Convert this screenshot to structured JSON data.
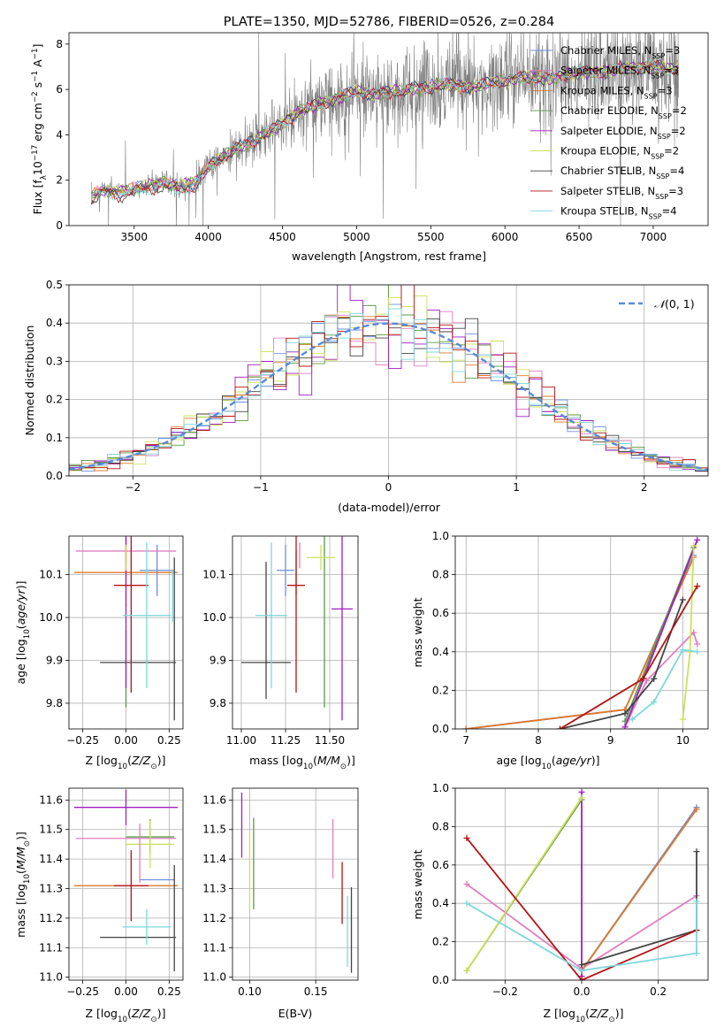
{
  "colors": {
    "Chabrier MILES": "#6a8fe0",
    "Salpeter MILES": "#e07ec1",
    "Kroupa MILES": "#e0782a",
    "Chabrier ELODIE": "#5a9a40",
    "Salpeter ELODIE": "#a01ec0",
    "Kroupa ELODIE": "#cde05a",
    "Chabrier STELIB": "#444444",
    "Salpeter STELIB": "#b41414",
    "Kroupa STELIB": "#7dd8dc",
    "gauss": "#5a8ad8"
  },
  "chart_data": [
    {
      "type": "line",
      "title": "PLATE=1350, MJD=52786, FIBERID=0526, z=0.284",
      "xlabel": "wavelength [Angstrom, rest frame]",
      "ylabel": "Flux [f_λ 10^-17 erg cm^-2 s^-1 A^-1]",
      "xlim": [
        3060,
        7370
      ],
      "ylim": [
        0,
        8.5
      ],
      "xticks": [
        3500,
        4000,
        4500,
        5000,
        5500,
        6000,
        6500,
        7000
      ],
      "yticks": [
        0,
        2,
        4,
        6,
        8
      ],
      "legend": [
        "Chabrier MILES, N_SSP=3",
        "Salpeter MILES, N_SSP=3",
        "Kroupa MILES, N_SSP=3",
        "Chabrier ELODIE, N_SSP=2",
        "Salpeter ELODIE, N_SSP=2",
        "Kroupa ELODIE, N_SSP=2",
        "Chabrier STELIB, N_SSP=4",
        "Salpeter STELIB, N_SSP=3",
        "Kroupa STELIB, N_SSP=4"
      ],
      "legend_position": "right",
      "model_wavelength": [
        3210,
        3300,
        3400,
        3500,
        3600,
        3700,
        3800,
        3900,
        4000,
        4100,
        4200,
        4300,
        4400,
        4500,
        4600,
        4700,
        4800,
        4900,
        5000,
        5100,
        5200,
        5300,
        5400,
        5500,
        5600,
        5700,
        5800,
        5900,
        6000,
        6100,
        6200,
        6300,
        6400,
        6500,
        6600,
        6700,
        6800,
        6900,
        7000,
        7100,
        7200
      ],
      "model_flux": [
        1.3,
        1.6,
        1.5,
        1.6,
        1.8,
        1.9,
        1.7,
        1.9,
        2.6,
        3.0,
        3.5,
        3.7,
        4.1,
        4.5,
        5.0,
        5.2,
        5.5,
        5.7,
        5.9,
        5.8,
        5.9,
        5.9,
        6.1,
        6.1,
        6.2,
        6.2,
        6.1,
        6.3,
        6.4,
        6.5,
        6.5,
        6.5,
        6.6,
        6.7,
        6.8,
        6.8,
        6.9,
        7.0,
        7.0,
        6.9,
        7.0
      ],
      "data_range": [
        3210,
        7170
      ]
    },
    {
      "type": "line",
      "xlabel": "(data-model)/error",
      "ylabel": "Normed distribution",
      "xlim": [
        -2.5,
        2.5
      ],
      "ylim": [
        0,
        0.5
      ],
      "xticks": [
        -2,
        -1,
        0,
        1,
        2
      ],
      "yticks": [
        0.0,
        0.1,
        0.2,
        0.3,
        0.4,
        0.5
      ],
      "grid": true,
      "legend": [
        "N(0,1)"
      ],
      "legend_position": "top-right",
      "bin_width": 0.1
    },
    {
      "type": "scatter",
      "xlabel": "Z [log10(Z/Z⊙)]",
      "ylabel": "age [log10(age/yr)]",
      "xlim": [
        -0.33,
        0.33
      ],
      "ylim": [
        9.74,
        10.19
      ],
      "xticks": [
        -0.25,
        0.0,
        0.25
      ],
      "yticks": [
        9.8,
        9.9,
        10.0,
        10.1
      ],
      "grid": true,
      "points": [
        {
          "model": "Chabrier MILES",
          "x": 0.18,
          "y": 10.11,
          "xerr": 0.1,
          "yerr": 0.06
        },
        {
          "model": "Salpeter MILES",
          "x": 0.0,
          "y": 10.155,
          "xerr": 0.29,
          "yerr": 0.03
        },
        {
          "model": "Kroupa MILES",
          "x": 0.0,
          "y": 10.105,
          "xerr": 0.3,
          "yerr": 0.08
        },
        {
          "model": "Chabrier ELODIE",
          "x": 0.0,
          "y": 9.88,
          "xerr": 0.0,
          "yerr": 0.09
        },
        {
          "model": "Salpeter ELODIE",
          "x": 0.0,
          "y": 10.075,
          "xerr": 0.0,
          "yerr": 0.24
        },
        {
          "model": "Kroupa ELODIE",
          "x": 0.0,
          "y": 10.14,
          "xerr": 0.0,
          "yerr": 0.03
        },
        {
          "model": "Chabrier STELIB",
          "x": 0.07,
          "y": 9.895,
          "xerr": 0.22,
          "yerr": 0.0
        },
        {
          "model": "Salpeter STELIB",
          "x": 0.03,
          "y": 10.075,
          "xerr": 0.1,
          "yerr": 0.25
        },
        {
          "model": "Kroupa STELIB",
          "x": 0.12,
          "y": 10.005,
          "xerr": 0.14,
          "yerr": 0.17
        },
        {
          "model": "Kroupa STELIB",
          "x": 0.27,
          "y": 10.05,
          "xerr": 0.0,
          "yerr": 0.06
        },
        {
          "model": "Chabrier STELIB",
          "x": 0.28,
          "y": 9.95,
          "xerr": 0.0,
          "yerr": 0.19
        }
      ]
    },
    {
      "type": "scatter",
      "xlabel": "mass [log10(M/M⊙)]",
      "xlim": [
        10.95,
        11.66
      ],
      "ylim": [
        9.74,
        10.19
      ],
      "xticks": [
        11.0,
        11.25,
        11.5
      ],
      "yticks": [
        9.8,
        9.9,
        10.0,
        10.1
      ],
      "grid": true,
      "points": [
        {
          "model": "Chabrier MILES",
          "x": 11.25,
          "y": 10.11,
          "xerr": 0.05,
          "yerr": 0.06
        },
        {
          "model": "Salpeter MILES",
          "x": 11.33,
          "y": 10.145,
          "xerr": 0.0,
          "yerr": 0.03
        },
        {
          "model": "Kroupa MILES",
          "x": 11.31,
          "y": 10.105,
          "xerr": 0.0,
          "yerr": 0.05
        },
        {
          "model": "Chabrier ELODIE",
          "x": 11.47,
          "y": 9.99,
          "xerr": 0.0,
          "yerr": 0.2
        },
        {
          "model": "Salpeter ELODIE",
          "x": 11.57,
          "y": 10.02,
          "xerr": 0.06,
          "yerr": 0.26
        },
        {
          "model": "Kroupa ELODIE",
          "x": 11.45,
          "y": 10.14,
          "xerr": 0.08,
          "yerr": 0.03
        },
        {
          "model": "Chabrier STELIB",
          "x": 11.14,
          "y": 9.895,
          "xerr": 0.14,
          "yerr": 0.0
        },
        {
          "model": "Chabrier STELIB",
          "x": 11.14,
          "y": 9.97,
          "xerr": 0.0,
          "yerr": 0.16
        },
        {
          "model": "Salpeter STELIB",
          "x": 11.31,
          "y": 10.075,
          "xerr": 0.05,
          "yerr": 0.25
        },
        {
          "model": "Kroupa STELIB",
          "x": 11.17,
          "y": 10.005,
          "xerr": 0.09,
          "yerr": 0.17
        }
      ]
    },
    {
      "type": "line",
      "xlabel": "age [log10(age/yr)]",
      "ylabel": "mass weight",
      "xlim": [
        6.85,
        10.35
      ],
      "ylim": [
        0.0,
        1.0
      ],
      "xticks": [
        7,
        8,
        9,
        10
      ],
      "yticks": [
        0.0,
        0.2,
        0.4,
        0.6,
        0.8,
        1.0
      ],
      "grid": true,
      "series": [
        {
          "model": "Chabrier MILES",
          "x": [
            7.0,
            9.2,
            10.15
          ],
          "y": [
            0.0,
            0.1,
            0.9
          ]
        },
        {
          "model": "Salpeter MILES",
          "x": [
            9.25,
            9.5,
            10.15,
            10.2
          ],
          "y": [
            0.05,
            0.25,
            0.5,
            0.44
          ]
        },
        {
          "model": "Kroupa MILES",
          "x": [
            7.0,
            9.2,
            10.15
          ],
          "y": [
            0.0,
            0.1,
            0.89
          ]
        },
        {
          "model": "Chabrier ELODIE",
          "x": [
            9.2,
            10.15
          ],
          "y": [
            0.04,
            0.94
          ]
        },
        {
          "model": "Salpeter ELODIE",
          "x": [
            9.2,
            10.2
          ],
          "y": [
            0.01,
            0.98
          ]
        },
        {
          "model": "Kroupa ELODIE",
          "x": [
            10.0,
            10.1,
            10.15
          ],
          "y": [
            0.05,
            0.4,
            0.95
          ]
        },
        {
          "model": "Chabrier STELIB",
          "x": [
            8.3,
            9.2,
            9.6,
            10.0
          ],
          "y": [
            0.0,
            0.08,
            0.26,
            0.67
          ]
        },
        {
          "model": "Salpeter STELIB",
          "x": [
            8.3,
            9.45,
            10.2
          ],
          "y": [
            0.0,
            0.26,
            0.74
          ]
        },
        {
          "model": "Kroupa STELIB",
          "x": [
            9.3,
            9.6,
            10.0,
            10.2
          ],
          "y": [
            0.05,
            0.14,
            0.41,
            0.4
          ]
        }
      ]
    },
    {
      "type": "scatter",
      "xlabel": "Z [log10(Z/Z⊙)]",
      "ylabel": "mass [log10(M/M⊙)]",
      "xlim": [
        -0.33,
        0.33
      ],
      "ylim": [
        10.99,
        11.64
      ],
      "xticks": [
        -0.25,
        0.0,
        0.25
      ],
      "yticks": [
        11.0,
        11.1,
        11.2,
        11.3,
        11.4,
        11.5,
        11.6
      ],
      "grid": true,
      "points": [
        {
          "model": "Chabrier MILES",
          "x": 0.18,
          "y": 11.33,
          "xerr": 0.1,
          "yerr": 0.0
        },
        {
          "model": "Salpeter MILES",
          "x": 0.0,
          "y": 11.47,
          "xerr": 0.29,
          "yerr": 0.0
        },
        {
          "model": "Kroupa MILES",
          "x": 0.0,
          "y": 11.31,
          "xerr": 0.3,
          "yerr": 0.0
        },
        {
          "model": "Chabrier ELODIE",
          "x": 0.14,
          "y": 11.475,
          "xerr": 0.14,
          "yerr": 0.06
        },
        {
          "model": "Salpeter ELODIE",
          "x": 0.0,
          "y": 11.575,
          "xerr": 0.3,
          "yerr": 0.06
        },
        {
          "model": "Kroupa ELODIE",
          "x": 0.14,
          "y": 11.45,
          "xerr": 0.14,
          "yerr": 0.08
        },
        {
          "model": "Chabrier STELIB",
          "x": 0.07,
          "y": 11.135,
          "xerr": 0.22,
          "yerr": 0.0
        },
        {
          "model": "Salpeter STELIB",
          "x": 0.03,
          "y": 11.31,
          "xerr": 0.1,
          "yerr": 0.12
        },
        {
          "model": "Kroupa STELIB",
          "x": 0.12,
          "y": 11.17,
          "xerr": 0.14,
          "yerr": 0.06
        },
        {
          "model": "Salpeter MILES",
          "x": 0.08,
          "y": 11.42,
          "xerr": 0.0,
          "yerr": 0.1
        },
        {
          "model": "Chabrier STELIB",
          "x": 0.28,
          "y": 11.2,
          "xerr": 0.0,
          "yerr": 0.18
        }
      ]
    },
    {
      "type": "scatter",
      "xlabel": "E(B-V)",
      "xlim": [
        0.087,
        0.182
      ],
      "ylim": [
        10.99,
        11.64
      ],
      "xticks": [
        0.1,
        0.15
      ],
      "yticks": [
        11.0,
        11.1,
        11.2,
        11.3,
        11.4,
        11.5,
        11.6
      ],
      "grid": true,
      "points": [
        {
          "model": "Salpeter ELODIE",
          "x": 0.094,
          "y": 11.515,
          "yerr": 0.11
        },
        {
          "model": "Kroupa ELODIE",
          "x": 0.1,
          "y": 11.36,
          "yerr": 0.13
        },
        {
          "model": "Chabrier ELODIE",
          "x": 0.103,
          "y": 11.385,
          "yerr": 0.155
        },
        {
          "model": "Salpeter MILES",
          "x": 0.163,
          "y": 11.435,
          "yerr": 0.1
        },
        {
          "model": "Salpeter STELIB",
          "x": 0.17,
          "y": 11.285,
          "yerr": 0.105
        },
        {
          "model": "Kroupa STELIB",
          "x": 0.174,
          "y": 11.155,
          "yerr": 0.12
        },
        {
          "model": "Chabrier STELIB",
          "x": 0.177,
          "y": 11.16,
          "yerr": 0.145
        }
      ]
    },
    {
      "type": "line",
      "xlabel": "Z [log10(Z/Z⊙)]",
      "ylabel": "mass weight",
      "xlim": [
        -0.33,
        0.33
      ],
      "ylim": [
        0.0,
        1.0
      ],
      "xticks": [
        -0.2,
        0.0,
        0.2
      ],
      "yticks": [
        0.0,
        0.2,
        0.4,
        0.6,
        0.8,
        1.0
      ],
      "grid": true,
      "series": [
        {
          "model": "Chabrier MILES",
          "x": [
            0.0,
            0.3
          ],
          "y": [
            0.05,
            0.9
          ]
        },
        {
          "model": "Salpeter MILES",
          "x": [
            -0.3,
            0.0,
            0.3
          ],
          "y": [
            0.5,
            0.06,
            0.44
          ]
        },
        {
          "model": "Kroupa MILES",
          "x": [
            0.0,
            0.3
          ],
          "y": [
            0.05,
            0.89
          ]
        },
        {
          "model": "Chabrier ELODIE",
          "x": [
            -0.3,
            0.0
          ],
          "y": [
            0.05,
            0.94
          ]
        },
        {
          "model": "Salpeter ELODIE",
          "x": [
            0.0,
            0.0
          ],
          "y": [
            0.02,
            0.98
          ]
        },
        {
          "model": "Kroupa ELODIE",
          "x": [
            -0.3,
            0.0
          ],
          "y": [
            0.05,
            0.95
          ]
        },
        {
          "model": "Chabrier STELIB",
          "x": [
            0.0,
            0.3,
            0.3
          ],
          "y": [
            0.08,
            0.26,
            0.67
          ]
        },
        {
          "model": "Salpeter STELIB",
          "x": [
            -0.3,
            0.0,
            0.3
          ],
          "y": [
            0.74,
            0.0,
            0.26
          ]
        },
        {
          "model": "Kroupa STELIB",
          "x": [
            -0.3,
            0.0,
            0.3,
            0.3
          ],
          "y": [
            0.4,
            0.05,
            0.14,
            0.41
          ]
        }
      ]
    }
  ]
}
